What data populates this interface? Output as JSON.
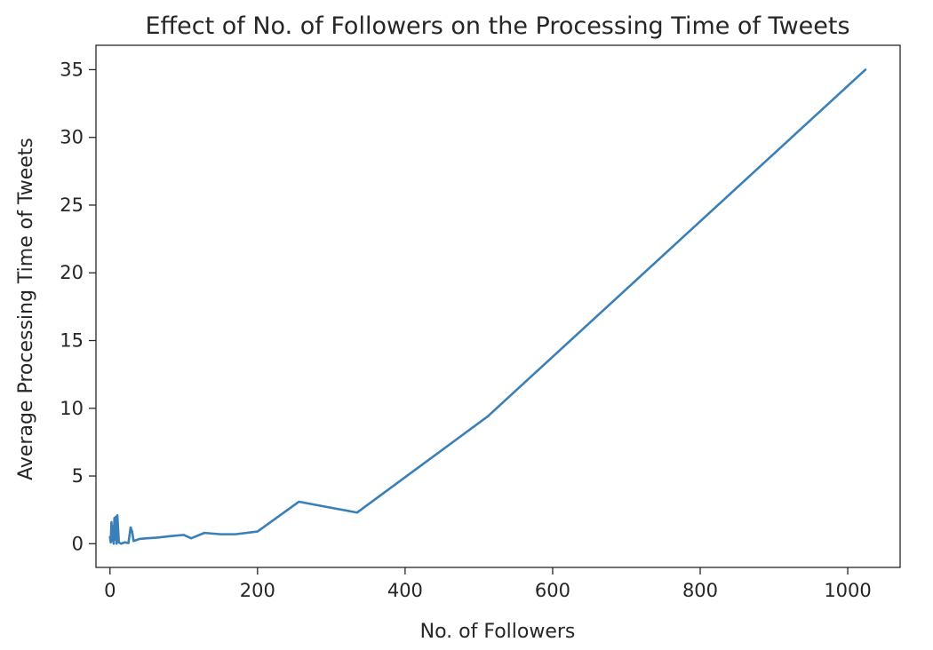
{
  "chart_data": {
    "type": "line",
    "title": "Effect of No. of Followers on the Processing Time of Tweets",
    "xlabel": "No. of Followers",
    "ylabel": "Average Processing Time of Tweets",
    "xlim": [
      -19,
      1071
    ],
    "ylim": [
      -1.75,
      36.8
    ],
    "xticks": [
      0,
      200,
      400,
      600,
      800,
      1000
    ],
    "xtick_labels": [
      "0",
      "200",
      "400",
      "600",
      "800",
      "1000"
    ],
    "yticks": [
      0,
      5,
      10,
      15,
      20,
      25,
      30,
      35
    ],
    "ytick_labels": [
      "0",
      "5",
      "10",
      "15",
      "20",
      "25",
      "30",
      "35"
    ],
    "grid": false,
    "series": [
      {
        "color": "#3a7fb8",
        "x": [
          0,
          1,
          2,
          3,
          4,
          5,
          6,
          7,
          8,
          9,
          10,
          12,
          15,
          20,
          25,
          28,
          30,
          32,
          40,
          50,
          64,
          80,
          100,
          110,
          128,
          150,
          170,
          200,
          256,
          335,
          512,
          1024
        ],
        "y": [
          0.5,
          0.1,
          1.6,
          0.2,
          1.3,
          0.0,
          1.9,
          0.3,
          2.0,
          0.0,
          2.1,
          0.1,
          0.0,
          0.1,
          0.05,
          1.2,
          0.9,
          0.2,
          0.35,
          0.4,
          0.45,
          0.55,
          0.65,
          0.4,
          0.8,
          0.7,
          0.7,
          0.9,
          3.1,
          2.3,
          9.4,
          35.0
        ]
      }
    ]
  }
}
